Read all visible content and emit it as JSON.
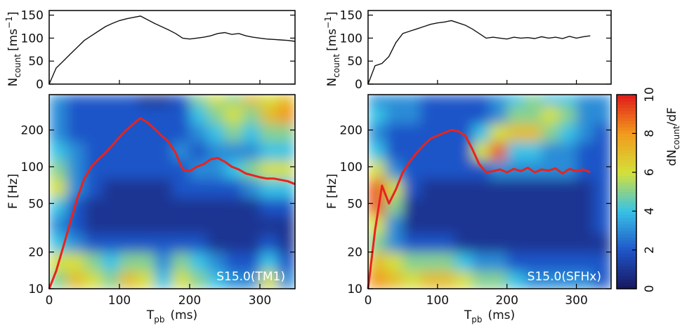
{
  "chart_data": [
    {
      "type": "line",
      "ylabel": [
        "N",
        "count",
        "[ms",
        "−1",
        "]"
      ],
      "color": "#111111",
      "x": [
        0,
        10,
        20,
        30,
        40,
        50,
        60,
        70,
        80,
        90,
        100,
        110,
        120,
        130,
        140,
        150,
        160,
        170,
        180,
        190,
        200,
        210,
        220,
        230,
        240,
        250,
        260,
        270,
        280,
        290,
        300,
        310,
        320,
        330,
        340,
        350
      ],
      "values": [
        0,
        35,
        50,
        65,
        80,
        95,
        105,
        115,
        125,
        132,
        138,
        142,
        145,
        148,
        140,
        132,
        125,
        118,
        110,
        100,
        98,
        100,
        102,
        105,
        110,
        112,
        108,
        110,
        105,
        102,
        100,
        98,
        97,
        96,
        95,
        93
      ],
      "xlim": [
        0,
        350
      ],
      "ylim": [
        0,
        160
      ],
      "yticks": [
        0,
        50,
        100,
        150
      ]
    },
    {
      "type": "heatmap",
      "ylabel": "F [Hz]",
      "xlabel": [
        "T",
        "pb",
        "(ms)"
      ],
      "annotation": "S15.0(TM1)",
      "xlim": [
        0,
        350
      ],
      "xticks": [
        0,
        100,
        200,
        300
      ],
      "ylim": [
        10,
        390
      ],
      "ylog": true,
      "yticks": [
        10,
        20,
        50,
        100,
        200
      ],
      "xbins": [
        0,
        25,
        50,
        75,
        100,
        125,
        150,
        175,
        200,
        225,
        250,
        275,
        300,
        325,
        350
      ],
      "ybins": [
        10,
        14,
        20,
        28,
        40,
        56,
        80,
        113,
        160,
        226,
        320,
        390
      ],
      "z": [
        [
          5,
          7,
          6,
          5,
          7,
          6,
          4,
          6,
          5,
          4,
          3,
          3,
          6,
          3
        ],
        [
          6,
          6,
          5,
          4,
          5,
          5,
          3,
          5,
          4,
          3,
          2,
          2,
          4,
          2
        ],
        [
          4,
          3,
          2,
          2,
          2,
          2,
          2,
          2,
          2,
          1,
          1,
          1,
          2,
          1
        ],
        [
          3,
          2,
          1,
          1,
          1,
          1,
          1,
          1,
          1,
          1,
          1,
          1,
          1,
          1
        ],
        [
          4,
          2,
          1,
          1,
          1,
          1,
          1,
          1,
          1,
          1,
          1,
          1,
          2,
          2
        ],
        [
          6,
          3,
          2,
          1,
          1,
          1,
          1,
          2,
          2,
          2,
          2,
          3,
          4,
          4
        ],
        [
          5,
          3,
          2,
          2,
          2,
          2,
          2,
          2,
          3,
          3,
          4,
          5,
          6,
          6
        ],
        [
          4,
          3,
          2,
          2,
          2,
          2,
          2,
          3,
          2,
          3,
          3,
          3,
          4,
          4
        ],
        [
          3,
          2,
          2,
          2,
          2,
          2,
          2,
          2,
          3,
          4,
          5,
          4,
          5,
          5
        ],
        [
          3,
          2,
          2,
          2,
          2,
          2,
          2,
          2,
          4,
          5,
          6,
          5,
          7,
          8
        ],
        [
          3,
          2,
          2,
          2,
          2,
          1,
          1,
          2,
          5,
          6,
          5,
          7,
          6,
          7
        ]
      ],
      "overlay": {
        "color": "#e8231e",
        "x": [
          0,
          10,
          20,
          30,
          40,
          50,
          60,
          70,
          80,
          90,
          100,
          110,
          120,
          130,
          140,
          150,
          160,
          170,
          180,
          190,
          200,
          210,
          220,
          230,
          240,
          250,
          260,
          270,
          280,
          290,
          300,
          310,
          320,
          330,
          340,
          350
        ],
        "values": [
          10,
          14,
          22,
          35,
          55,
          80,
          100,
          115,
          130,
          150,
          175,
          200,
          225,
          250,
          230,
          205,
          180,
          160,
          130,
          95,
          92,
          100,
          105,
          115,
          118,
          110,
          100,
          95,
          88,
          85,
          82,
          80,
          80,
          78,
          76,
          72
        ]
      }
    },
    {
      "type": "line",
      "ylabel": [
        "N",
        "count",
        "[ms",
        "−1",
        "]"
      ],
      "color": "#111111",
      "x": [
        0,
        10,
        20,
        30,
        40,
        50,
        60,
        70,
        80,
        90,
        100,
        110,
        120,
        130,
        140,
        150,
        160,
        170,
        180,
        190,
        200,
        210,
        220,
        230,
        240,
        250,
        260,
        270,
        280,
        290,
        300,
        310,
        320
      ],
      "values": [
        0,
        40,
        45,
        60,
        90,
        110,
        115,
        120,
        125,
        130,
        133,
        135,
        138,
        133,
        128,
        120,
        110,
        100,
        102,
        100,
        98,
        102,
        100,
        101,
        99,
        103,
        100,
        102,
        99,
        104,
        100,
        103,
        105
      ],
      "xlim": [
        0,
        350
      ],
      "ylim": [
        0,
        160
      ],
      "yticks": [
        0,
        50,
        100,
        150
      ]
    },
    {
      "type": "heatmap",
      "ylabel": "F [Hz]",
      "xlabel": [
        "T",
        "pb",
        "(ms)"
      ],
      "annotation": "S15.0(SFHx)",
      "xlim": [
        0,
        350
      ],
      "xticks": [
        0,
        100,
        200,
        300
      ],
      "ylim": [
        10,
        390
      ],
      "ylog": true,
      "yticks": [
        10,
        20,
        50,
        100,
        200
      ],
      "xbins": [
        0,
        25,
        50,
        75,
        100,
        125,
        150,
        175,
        200,
        225,
        250,
        275,
        300,
        325,
        350
      ],
      "ybins": [
        10,
        14,
        20,
        28,
        40,
        56,
        80,
        113,
        160,
        226,
        320,
        390
      ],
      "z": [
        [
          8,
          7,
          6,
          7,
          7,
          6,
          5,
          5,
          4,
          3,
          3,
          3,
          3,
          2
        ],
        [
          7,
          6,
          5,
          5,
          5,
          4,
          3,
          3,
          2,
          2,
          2,
          2,
          2,
          2
        ],
        [
          5,
          3,
          2,
          2,
          2,
          1,
          1,
          1,
          1,
          1,
          1,
          1,
          1,
          1
        ],
        [
          6,
          3,
          1,
          1,
          1,
          1,
          1,
          1,
          1,
          1,
          1,
          1,
          1,
          2
        ],
        [
          9,
          5,
          1,
          1,
          1,
          1,
          1,
          1,
          1,
          1,
          1,
          1,
          1,
          2
        ],
        [
          9,
          6,
          2,
          1,
          1,
          1,
          1,
          1,
          1,
          1,
          1,
          1,
          1,
          2
        ],
        [
          6,
          3,
          2,
          2,
          2,
          2,
          2,
          3,
          3,
          3,
          3,
          3,
          2,
          2
        ],
        [
          4,
          2,
          2,
          2,
          2,
          2,
          6,
          9,
          4,
          4,
          3,
          3,
          2,
          2
        ],
        [
          3,
          2,
          2,
          2,
          2,
          2,
          4,
          6,
          7,
          7,
          5,
          4,
          3,
          2
        ],
        [
          4,
          3,
          3,
          2,
          2,
          2,
          2,
          3,
          5,
          5,
          6,
          5,
          3,
          3
        ],
        [
          3,
          3,
          3,
          2,
          2,
          2,
          2,
          3,
          4,
          5,
          4,
          4,
          3,
          3
        ]
      ],
      "overlay": {
        "color": "#e8231e",
        "x": [
          0,
          10,
          20,
          30,
          40,
          50,
          60,
          70,
          80,
          90,
          100,
          110,
          120,
          130,
          140,
          150,
          160,
          170,
          180,
          190,
          200,
          210,
          220,
          230,
          240,
          250,
          260,
          270,
          280,
          290,
          300,
          310,
          320
        ],
        "values": [
          10,
          30,
          70,
          50,
          65,
          90,
          110,
          130,
          150,
          170,
          180,
          190,
          200,
          195,
          180,
          140,
          105,
          90,
          92,
          95,
          90,
          96,
          92,
          98,
          90,
          95,
          93,
          97,
          88,
          96,
          92,
          95,
          90
        ]
      },
      "colorbar": {
        "lim": [
          0,
          10
        ],
        "ticks": [
          0,
          2,
          4,
          6,
          8,
          10
        ],
        "label": [
          "dN",
          "count",
          "/dF"
        ],
        "colors": [
          "#17175e",
          "#1f55c8",
          "#38c2e6",
          "#d4e03a",
          "#f29a1c",
          "#e01b1b"
        ]
      }
    }
  ]
}
